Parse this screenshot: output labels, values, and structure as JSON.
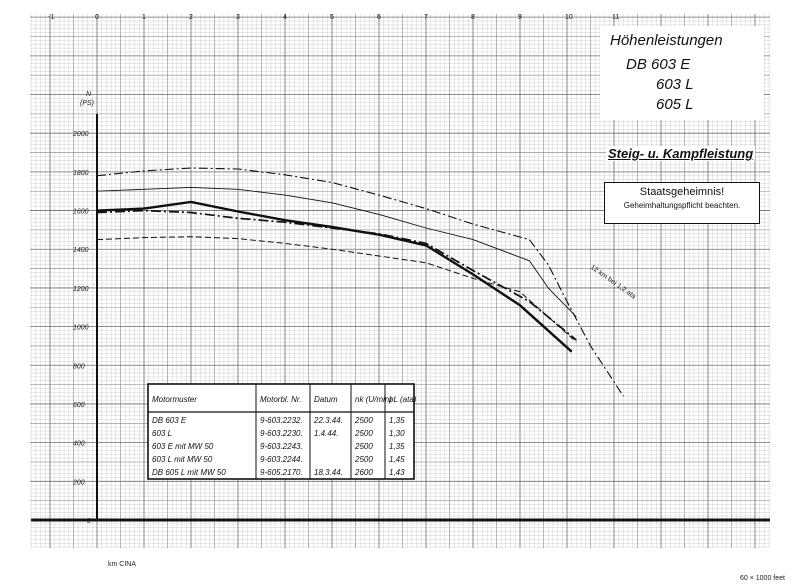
{
  "title_box": {
    "line1": "Höhenleistungen",
    "line2": "DB 603 E",
    "line3": "603 L",
    "line4": "605 L"
  },
  "subtitle": "Steig- u. Kampfleistung",
  "stamp": {
    "line1": "Staatsgeheimnis!",
    "line2": "Geheimhaltungspflicht beachten."
  },
  "table": {
    "headers": [
      "Motormuster",
      "Motorbl. Nr.",
      "Datum",
      "nk (U/min)",
      "pL (ata)"
    ],
    "rows": [
      [
        "DB 603 E",
        "9-603.2232.",
        "22.3.44.",
        "2500",
        "1,35"
      ],
      [
        "603 L",
        "9-603.2230.",
        "1.4.44.",
        "2500",
        "1,30"
      ],
      [
        "603 E mit MW 50",
        "9-603.2243.",
        "",
        "2500",
        "1,35"
      ],
      [
        "603 L mit MW 50",
        "9-603.2244.",
        "",
        "2500",
        "1,45"
      ],
      [
        "DB 605 L mit MW 50",
        "9-605.2170.",
        "18.3.44.",
        "2600",
        "1,43"
      ]
    ]
  },
  "annotation": "12 km bei 1,2 ata",
  "axis_labels": {
    "y_symbol": "N",
    "y_unit": "(PS)",
    "km_label": "km CINA",
    "feet_label": "60 × 1000 feet"
  },
  "colors": {
    "grid": "#9a9a9a",
    "ink": "#111111",
    "background": "#ffffff"
  },
  "chart_data": {
    "type": "line",
    "title": "Höhenleistungen DB 603 E / 603 L / 605 L",
    "subtitle": "Steig- u. Kampfleistung",
    "xlabel": "km CINA",
    "ylabel": "N (PS)",
    "xlim": [
      -1,
      12
    ],
    "ylim": [
      0,
      2200
    ],
    "x_ticks": [
      -1,
      0,
      1,
      2,
      3,
      4,
      5,
      6,
      7,
      8,
      9,
      10,
      11
    ],
    "y_ticks": [
      200,
      400,
      600,
      800,
      1000,
      1200,
      1400,
      1600,
      1800,
      2000
    ],
    "grid": true,
    "series": [
      {
        "style": "dash-dot",
        "x": [
          0,
          1,
          2,
          3,
          4,
          5,
          6,
          7,
          8,
          9.2,
          9.6,
          10,
          10.5,
          11.2
        ],
        "y": [
          1780,
          1805,
          1820,
          1815,
          1785,
          1745,
          1680,
          1610,
          1530,
          1450,
          1320,
          1130,
          900,
          640
        ]
      },
      {
        "style": "thin-solid",
        "x": [
          0,
          1,
          2,
          3,
          4,
          5,
          6,
          7,
          8,
          9.2,
          9.6,
          10.2
        ],
        "y": [
          1700,
          1710,
          1720,
          1710,
          1680,
          1640,
          1580,
          1510,
          1450,
          1340,
          1200,
          1050
        ]
      },
      {
        "style": "thick-solid",
        "x": [
          0,
          1,
          2,
          3,
          4,
          5,
          6,
          7,
          8,
          9,
          10.1
        ],
        "y": [
          1600,
          1610,
          1645,
          1595,
          1550,
          1515,
          1475,
          1420,
          1270,
          1110,
          870
        ]
      },
      {
        "style": "thick-dash-dot",
        "x": [
          0,
          1,
          2,
          3,
          4,
          5,
          6,
          7,
          8,
          9.2,
          10.2
        ],
        "y": [
          1590,
          1600,
          1590,
          1560,
          1540,
          1510,
          1480,
          1430,
          1290,
          1130,
          930
        ]
      },
      {
        "style": "dashed",
        "x": [
          0,
          1,
          2,
          3,
          4,
          5,
          6,
          7,
          8,
          9,
          9.6,
          10.2
        ],
        "y": [
          1450,
          1460,
          1465,
          1455,
          1430,
          1400,
          1365,
          1330,
          1250,
          1180,
          1050,
          920
        ]
      }
    ]
  }
}
